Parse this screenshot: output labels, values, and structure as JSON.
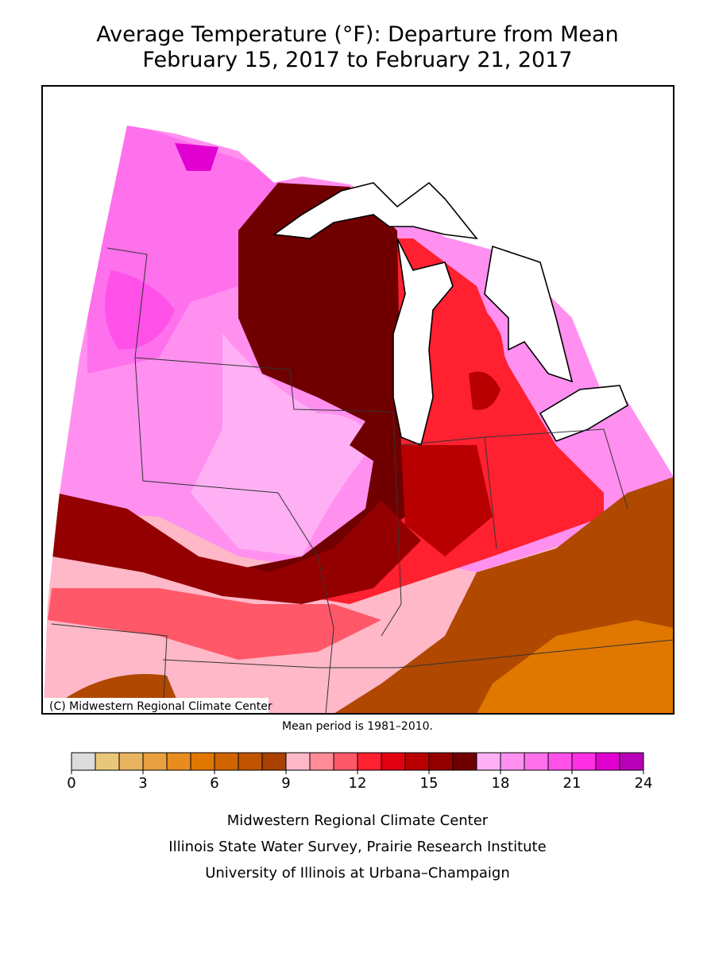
{
  "title": [
    "Average Temperature (°F): Departure from Mean",
    "February 15, 2017 to February 21, 2017"
  ],
  "copyright": "(C) Midwestern Regional Climate Center",
  "mean_period": "Mean period is 1981–2010.",
  "colorbar": {
    "range": [
      0,
      24
    ],
    "ticks": [
      0,
      3,
      6,
      9,
      12,
      15,
      18,
      21,
      24
    ],
    "colors": [
      "#dcdcdc",
      "#e8c878",
      "#e8b460",
      "#e8a040",
      "#e88c20",
      "#e07800",
      "#d06400",
      "#c05400",
      "#a84000",
      "#ffb8c8",
      "#ff8c98",
      "#ff5868",
      "#ff2030",
      "#e00010",
      "#b80000",
      "#940000",
      "#700000",
      "#ffb0f4",
      "#ff90f0",
      "#ff70ec",
      "#ff50e8",
      "#ff30e4",
      "#e000d0",
      "#b800b8"
    ]
  },
  "credits": [
    "Midwestern Regional Climate Center",
    "Illinois State Water Survey, Prairie Research Institute",
    "University of Illinois at Urbana–Champaign"
  ]
}
